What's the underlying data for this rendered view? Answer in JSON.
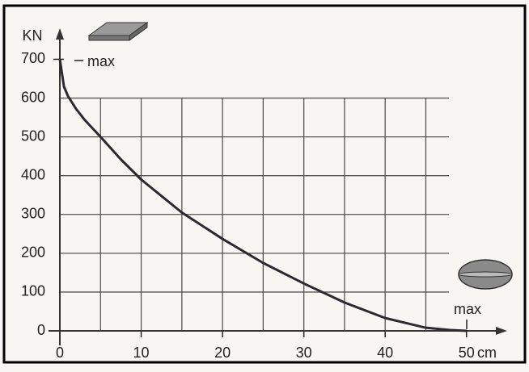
{
  "chart_data": {
    "type": "line",
    "y_label": "KN",
    "x_label": "cm",
    "annotations": [
      "max",
      "max"
    ],
    "x": [
      0,
      0.5,
      1,
      2,
      3,
      5,
      7.5,
      10,
      15,
      20,
      25,
      30,
      35,
      40,
      45,
      48,
      50
    ],
    "values": [
      700,
      630,
      605,
      572,
      545,
      500,
      442,
      390,
      305,
      237,
      175,
      122,
      73,
      33,
      8,
      2,
      0
    ],
    "color": "#2a2a30",
    "xlim": [
      0,
      55
    ],
    "ylim": [
      0,
      780
    ],
    "xticks": [
      0,
      10,
      20,
      30,
      40,
      50
    ],
    "yticks": [
      0,
      100,
      200,
      300,
      400,
      500,
      600,
      700
    ],
    "xgrid": [
      5,
      10,
      15,
      20,
      25,
      30,
      35,
      40,
      45
    ],
    "grid": true
  }
}
